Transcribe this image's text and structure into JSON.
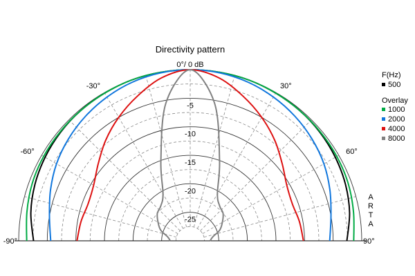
{
  "chart_data": {
    "type": "polar",
    "title": "Directivity pattern",
    "top_label": "0°/ 0 dB",
    "angle_range_deg": [
      -90,
      90
    ],
    "angle_step_deg": 15,
    "angle_labels": [
      {
        "angle": -90,
        "text": "-90°"
      },
      {
        "angle": -60,
        "text": "-60°"
      },
      {
        "angle": -30,
        "text": "-30°"
      },
      {
        "angle": 30,
        "text": "30°"
      },
      {
        "angle": 60,
        "text": "60°"
      },
      {
        "angle": 90,
        "text": "90°"
      }
    ],
    "r_range_db": [
      -30,
      0
    ],
    "r_step_db": 2.5,
    "r_labels": [
      {
        "db": -5,
        "text": "-5"
      },
      {
        "db": -10,
        "text": "-10"
      },
      {
        "db": -15,
        "text": "-15"
      },
      {
        "db": -20,
        "text": "-20"
      },
      {
        "db": -25,
        "text": "-25"
      }
    ],
    "legend": {
      "header": "F(Hz)",
      "overlay_label": "Overlay"
    },
    "watermark": "ARTA",
    "angles": [
      -90,
      -80,
      -70,
      -60,
      -50,
      -40,
      -30,
      -20,
      -10,
      0,
      10,
      20,
      30,
      40,
      50,
      60,
      70,
      80,
      90
    ],
    "series": [
      {
        "name": "500",
        "group": "main",
        "color": "#000000",
        "values": [
          -2.6,
          -1.7,
          -1.1,
          -0.7,
          -0.4,
          -0.2,
          -0.1,
          0,
          0,
          0,
          0,
          0,
          -0.1,
          -0.2,
          -0.4,
          -0.7,
          -1.1,
          -1.7,
          -2.6
        ]
      },
      {
        "name": "1000",
        "group": "overlay",
        "color": "#00aa44",
        "values": [
          -1.4,
          -1.0,
          -0.6,
          -0.4,
          -0.3,
          -0.2,
          -0.1,
          0,
          0,
          0,
          0,
          0,
          -0.1,
          -0.2,
          -0.3,
          -0.4,
          -0.6,
          -1.0,
          -1.4
        ]
      },
      {
        "name": "2000",
        "group": "overlay",
        "color": "#1177dd",
        "values": [
          -5.6,
          -5.0,
          -4.0,
          -3.0,
          -2.2,
          -1.5,
          -0.9,
          -0.4,
          -0.1,
          0,
          -0.1,
          -0.4,
          -0.9,
          -1.5,
          -2.2,
          -3.0,
          -4.0,
          -5.0,
          -5.6
        ]
      },
      {
        "name": "4000",
        "group": "overlay",
        "color": "#dd1111",
        "values": [
          -10.2,
          -10.6,
          -11.0,
          -10.5,
          -9.0,
          -7.0,
          -5.0,
          -3.0,
          -1.0,
          0,
          -1.0,
          -3.0,
          -5.0,
          -7.0,
          -9.0,
          -10.5,
          -11.0,
          -10.6,
          -10.2
        ]
      },
      {
        "name": "8000",
        "group": "overlay",
        "color": "#808080",
        "values": [
          -26.5,
          -26.0,
          -24.5,
          -23.5,
          -22.5,
          -22.0,
          -20.5,
          -15.0,
          -5.5,
          0,
          -5.5,
          -15.0,
          -20.5,
          -22.0,
          -22.5,
          -23.5,
          -24.5,
          -26.0,
          -26.5
        ]
      }
    ]
  }
}
